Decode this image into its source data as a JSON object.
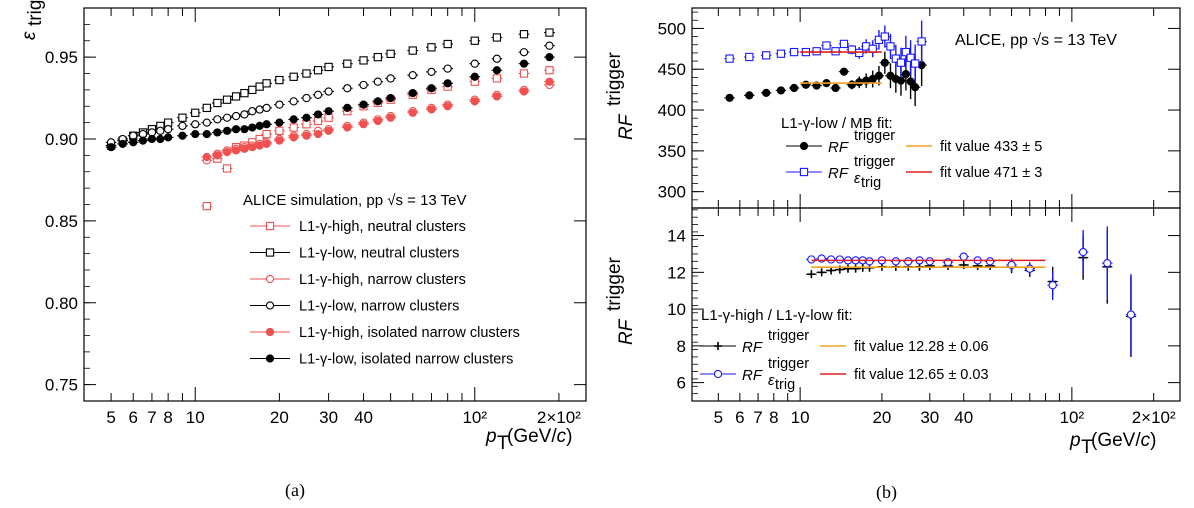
{
  "chart_data": [
    {
      "panel": "a",
      "type": "scatter",
      "caption": "(a)",
      "ylabel": "ε",
      "ylabel_sub": "trig",
      "xlabel": "p",
      "xlabel_sub": "T",
      "xlabel_unit": "(GeV/c)",
      "xscale": "log",
      "xlim": [
        4,
        250
      ],
      "ylim": [
        0.74,
        0.98
      ],
      "xticks": [
        5,
        6,
        7,
        8,
        10,
        20,
        30,
        40,
        100,
        200
      ],
      "xtick_labels": [
        "5",
        "6",
        "7",
        "8",
        "10",
        "20",
        "30",
        "40",
        "10²",
        "2×10²"
      ],
      "yticks": [
        0.75,
        0.8,
        0.85,
        0.9,
        0.95
      ],
      "ytick_labels": [
        "0.75",
        "0.80",
        "0.85",
        "0.90",
        "0.95"
      ],
      "legend_header": "ALICE simulation, pp √s = 13 TeV",
      "legend_position": "right",
      "series": [
        {
          "name": "L1-γ-high, neutral clusters",
          "color": "#f05050",
          "marker": "open-square",
          "x": [
            11,
            12,
            13,
            14,
            15,
            16,
            17,
            18,
            20,
            22.5,
            25,
            27.5,
            30,
            35,
            40,
            45,
            50,
            60,
            70,
            80,
            100,
            120,
            150,
            185
          ],
          "y": [
            0.859,
            0.888,
            0.882,
            0.895,
            0.896,
            0.898,
            0.9,
            0.903,
            0.905,
            0.907,
            0.909,
            0.911,
            0.913,
            0.917,
            0.92,
            0.922,
            0.924,
            0.927,
            0.93,
            0.932,
            0.935,
            0.937,
            0.94,
            0.942
          ]
        },
        {
          "name": "L1-γ-low,  neutral clusters",
          "color": "#000000",
          "marker": "open-square",
          "x": [
            5,
            5.5,
            6,
            6.5,
            7,
            7.5,
            8,
            9,
            10,
            11,
            12,
            13,
            14,
            15,
            16,
            17,
            18,
            20,
            22.5,
            25,
            27.5,
            30,
            35,
            40,
            45,
            50,
            60,
            70,
            80,
            100,
            120,
            150,
            185
          ],
          "y": [
            0.896,
            0.899,
            0.902,
            0.904,
            0.906,
            0.908,
            0.91,
            0.913,
            0.916,
            0.919,
            0.922,
            0.924,
            0.926,
            0.928,
            0.93,
            0.932,
            0.934,
            0.936,
            0.938,
            0.94,
            0.942,
            0.944,
            0.946,
            0.948,
            0.95,
            0.952,
            0.954,
            0.956,
            0.958,
            0.96,
            0.962,
            0.964,
            0.965
          ]
        },
        {
          "name": "L1-γ-high, narrow clusters",
          "color": "#f05050",
          "marker": "open-circle",
          "x": [
            11,
            12,
            13,
            14,
            15,
            16,
            17,
            18,
            20,
            22.5,
            25,
            27.5,
            30,
            35,
            40,
            45,
            50,
            60,
            70,
            80,
            100,
            120,
            150,
            185
          ],
          "y": [
            0.887,
            0.891,
            0.893,
            0.894,
            0.895,
            0.896,
            0.897,
            0.898,
            0.9,
            0.902,
            0.903,
            0.905,
            0.906,
            0.908,
            0.91,
            0.912,
            0.914,
            0.917,
            0.919,
            0.921,
            0.924,
            0.927,
            0.93,
            0.933
          ]
        },
        {
          "name": "L1-γ-low,  narrow clusters",
          "color": "#000000",
          "marker": "open-circle",
          "x": [
            5,
            5.5,
            6,
            6.5,
            7,
            7.5,
            8,
            9,
            10,
            11,
            12,
            13,
            14,
            15,
            16,
            17,
            18,
            20,
            22.5,
            25,
            27.5,
            30,
            35,
            40,
            45,
            50,
            60,
            70,
            80,
            100,
            120,
            150,
            185
          ],
          "y": [
            0.898,
            0.9,
            0.902,
            0.903,
            0.904,
            0.905,
            0.906,
            0.908,
            0.909,
            0.91,
            0.912,
            0.913,
            0.914,
            0.915,
            0.917,
            0.918,
            0.919,
            0.921,
            0.923,
            0.925,
            0.927,
            0.929,
            0.931,
            0.933,
            0.935,
            0.937,
            0.939,
            0.941,
            0.943,
            0.946,
            0.949,
            0.953,
            0.957
          ]
        },
        {
          "name": "L1-γ-high, isolated narrow clusters",
          "color": "#f05050",
          "marker": "filled-circle",
          "x": [
            11,
            12,
            13,
            14,
            15,
            16,
            17,
            18,
            20,
            22.5,
            25,
            27.5,
            30,
            35,
            40,
            45,
            50,
            60,
            70,
            80,
            100,
            120,
            150,
            185
          ],
          "y": [
            0.889,
            0.89,
            0.892,
            0.893,
            0.894,
            0.895,
            0.896,
            0.897,
            0.899,
            0.901,
            0.902,
            0.903,
            0.905,
            0.907,
            0.909,
            0.911,
            0.913,
            0.916,
            0.918,
            0.92,
            0.923,
            0.926,
            0.929,
            0.935
          ]
        },
        {
          "name": "L1-γ-low,  isolated narrow clusters",
          "color": "#000000",
          "marker": "filled-circle",
          "x": [
            5,
            5.5,
            6,
            6.5,
            7,
            7.5,
            8,
            9,
            10,
            11,
            12,
            13,
            14,
            15,
            16,
            17,
            18,
            20,
            22.5,
            25,
            27.5,
            30,
            35,
            40,
            45,
            50,
            60,
            70,
            80,
            100,
            120,
            150,
            185
          ],
          "y": [
            0.895,
            0.897,
            0.898,
            0.899,
            0.9,
            0.9,
            0.901,
            0.902,
            0.903,
            0.903,
            0.904,
            0.905,
            0.906,
            0.906,
            0.907,
            0.908,
            0.909,
            0.91,
            0.912,
            0.913,
            0.915,
            0.917,
            0.919,
            0.921,
            0.923,
            0.925,
            0.928,
            0.931,
            0.934,
            0.938,
            0.942,
            0.946,
            0.95
          ]
        }
      ]
    },
    {
      "panel": "b-top",
      "type": "scatter",
      "caption": "(b)",
      "ylabel": "RF",
      "ylabel_sup": "trigger",
      "xscale": "log",
      "xlim": [
        4,
        250
      ],
      "ylim": [
        280,
        525
      ],
      "yticks": [
        300,
        350,
        400,
        450,
        500
      ],
      "ytick_labels": [
        "300",
        "350",
        "400",
        "450",
        "500"
      ],
      "annotation": "ALICE, pp √s = 13 TeV",
      "legend_header": "L1-γ-low / MB fit:",
      "legend_position": "middle",
      "legend": [
        {
          "label": "RF",
          "sup": "trigger",
          "color": "#000000",
          "marker": "filled-circle"
        },
        {
          "label": "RF",
          "sub": "ε",
          "subsub": "trig",
          "sup": "trigger",
          "color": "#1a1aff",
          "marker": "open-square"
        },
        {
          "label": "fit value 433 ± 5",
          "color": "#f0a020",
          "marker": "line"
        },
        {
          "label": "fit value 471 ± 3",
          "color": "#e02020",
          "marker": "line"
        }
      ],
      "series": [
        {
          "name": "RF trigger",
          "color": "#000000",
          "marker": "filled-circle",
          "x": [
            5.5,
            6.5,
            7.5,
            8.5,
            9.5,
            10.5,
            11.5,
            12.5,
            13.5,
            14.5,
            15.5,
            16.5,
            17.5,
            18.5,
            19.5,
            20.5,
            21.5,
            22.5,
            23.5,
            24.5,
            25.5,
            26.5,
            28
          ],
          "y": [
            415,
            418,
            421,
            424,
            427,
            431,
            430,
            433,
            427,
            447,
            431,
            434,
            436,
            438,
            442,
            458,
            442,
            438,
            436,
            444,
            435,
            428,
            455
          ]
        },
        {
          "name": "RF epsilon trig trigger",
          "color": "#1a1aff",
          "marker": "open-square",
          "x": [
            5.5,
            6.5,
            7.5,
            8.5,
            9.5,
            10.5,
            11.5,
            12.5,
            13.5,
            14.5,
            15.5,
            16.5,
            17.5,
            18.5,
            19.5,
            20.5,
            21.5,
            22.5,
            23.5,
            24.5,
            25.5,
            26.5,
            28
          ],
          "y": [
            463,
            465,
            467,
            469,
            471,
            471,
            472,
            479,
            472,
            481,
            474,
            470,
            478,
            475,
            486,
            490,
            478,
            463,
            458,
            471,
            464,
            457,
            484
          ]
        },
        {
          "name": "fit value 433 ± 5",
          "color": "#f0a020",
          "marker": "line",
          "x": [
            10,
            20
          ],
          "y": [
            433,
            433
          ]
        },
        {
          "name": "fit value 471 ± 3",
          "color": "#e02020",
          "marker": "line",
          "x": [
            10,
            20
          ],
          "y": [
            471,
            471
          ]
        }
      ]
    },
    {
      "panel": "b-bottom",
      "type": "scatter",
      "ylabel": "RF",
      "ylabel_sup": "trigger",
      "xlabel": "p",
      "xlabel_sub": "T",
      "xlabel_unit": "(GeV/c)",
      "xscale": "log",
      "xlim": [
        4,
        250
      ],
      "ylim": [
        5,
        15.5
      ],
      "xticks": [
        5,
        6,
        7,
        8,
        10,
        20,
        30,
        40,
        100,
        200
      ],
      "xtick_labels": [
        "5",
        "6",
        "7",
        "8",
        "10",
        "20",
        "30",
        "40",
        "10²",
        "2×10²"
      ],
      "yticks": [
        6,
        8,
        10,
        12,
        14
      ],
      "ytick_labels": [
        "6",
        "8",
        "10",
        "12",
        "14"
      ],
      "legend_header": "L1-γ-high / L1-γ-low fit:",
      "legend_position": "bottom-left",
      "legend": [
        {
          "label": "RF",
          "sup": "trigger",
          "color": "#000000",
          "marker": "plus"
        },
        {
          "label": "RF",
          "sub": "ε",
          "subsub": "trig",
          "sup": "trigger",
          "color": "#1a1aff",
          "marker": "open-circle"
        },
        {
          "label": "fit value 12.28 ± 0.06",
          "color": "#f0a020",
          "marker": "line"
        },
        {
          "label": "fit value 12.65 ± 0.03",
          "color": "#e02020",
          "marker": "line"
        }
      ],
      "series": [
        {
          "name": "RF trigger",
          "color": "#000000",
          "marker": "plus",
          "x": [
            11,
            12,
            13,
            14,
            15,
            16,
            17,
            18,
            20,
            22.5,
            25,
            27.5,
            30,
            35,
            40,
            45,
            50,
            60,
            70,
            85,
            110,
            135,
            165
          ],
          "y": [
            11.9,
            12.0,
            12.1,
            12.15,
            12.2,
            12.2,
            12.25,
            12.25,
            12.3,
            12.3,
            12.3,
            12.3,
            12.35,
            12.35,
            12.4,
            12.35,
            12.35,
            12.3,
            12.1,
            11.5,
            12.8,
            12.3,
            9.6
          ]
        },
        {
          "name": "RF epsilon trig trigger",
          "color": "#1a1aff",
          "marker": "open-circle",
          "x": [
            11,
            12,
            13,
            14,
            15,
            16,
            17,
            18,
            20,
            22.5,
            25,
            27.5,
            30,
            35,
            40,
            45,
            50,
            60,
            70,
            85,
            110,
            135,
            165
          ],
          "y": [
            12.7,
            12.75,
            12.7,
            12.7,
            12.65,
            12.65,
            12.65,
            12.6,
            12.65,
            12.6,
            12.6,
            12.65,
            12.6,
            12.55,
            12.85,
            12.65,
            12.6,
            12.4,
            12.2,
            11.3,
            13.1,
            12.5,
            9.7
          ]
        },
        {
          "name": "fit value 12.28 ± 0.06",
          "color": "#f0a020",
          "marker": "line",
          "x": [
            11,
            80
          ],
          "y": [
            12.28,
            12.28
          ]
        },
        {
          "name": "fit value 12.65 ± 0.03",
          "color": "#e02020",
          "marker": "line",
          "x": [
            11,
            80
          ],
          "y": [
            12.65,
            12.65
          ]
        }
      ]
    }
  ]
}
